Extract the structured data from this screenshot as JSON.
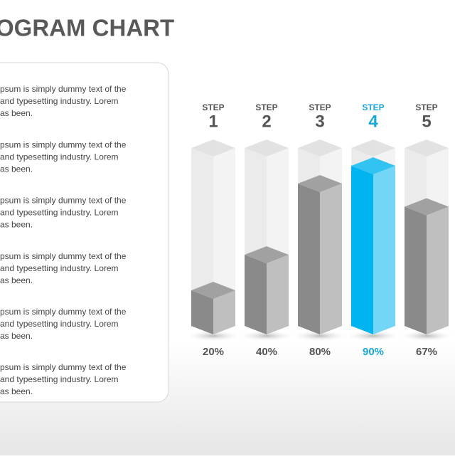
{
  "title": "OGRAM CHART",
  "text_panel": {
    "paragraphs": [
      [
        "psum is simply dummy text of the",
        "and typesetting industry. Lorem",
        "as been."
      ],
      [
        "psum is simply dummy text of the",
        "and typesetting industry. Lorem",
        "as been."
      ],
      [
        "psum is simply dummy text of the",
        "and typesetting industry. Lorem",
        "as been."
      ],
      [
        "psum is simply dummy text of the",
        "and typesetting industry. Lorem",
        "as been."
      ],
      [
        "psum is simply dummy text of the",
        "and typesetting industry. Lorem",
        "as been."
      ],
      [
        "psum is simply dummy text of the",
        "and typesetting industry. Lorem",
        "as been."
      ]
    ]
  },
  "chart_data": {
    "type": "bar",
    "step_label": "STEP",
    "categories": [
      "1",
      "2",
      "3",
      "4",
      "5"
    ],
    "values": [
      20,
      40,
      80,
      90,
      67
    ],
    "value_labels": [
      "20%",
      "40%",
      "80%",
      "90%",
      "67%"
    ],
    "colors": [
      "#8a8a8a",
      "#8a8a8a",
      "#8a8a8a",
      "#00b4f0",
      "#8a8a8a"
    ],
    "label_colors": [
      "#555555",
      "#555555",
      "#555555",
      "#1aa6d8",
      "#555555"
    ],
    "ylim": [
      0,
      100
    ]
  }
}
